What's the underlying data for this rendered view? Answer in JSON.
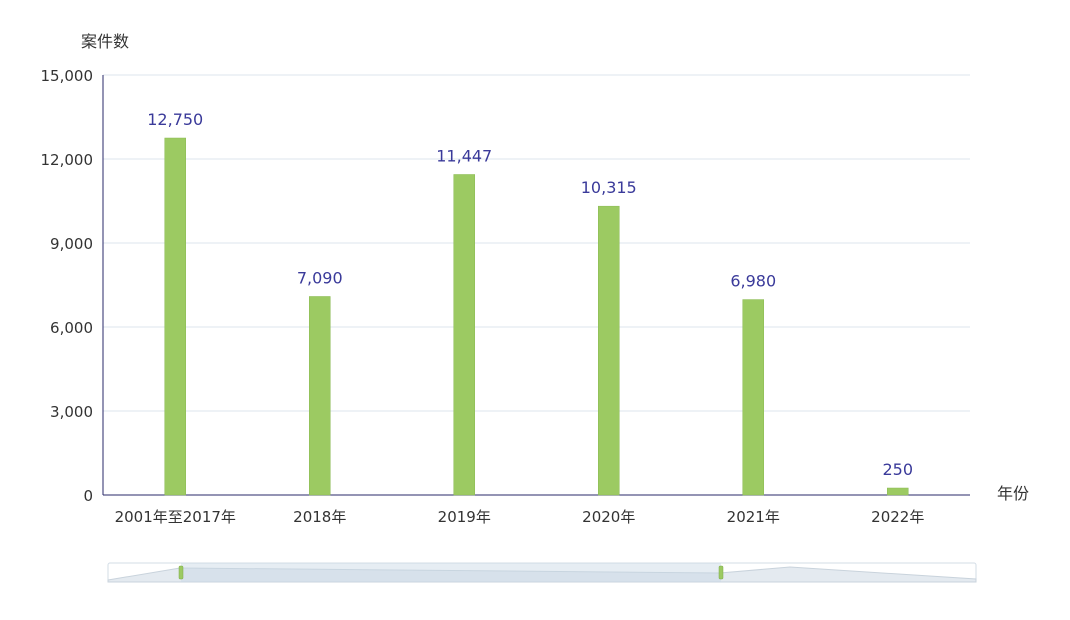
{
  "chart_data": {
    "type": "bar",
    "categories": [
      "2001年至2017年",
      "2018年",
      "2019年",
      "2020年",
      "2021年",
      "2022年"
    ],
    "values": [
      12750,
      7090,
      11447,
      10315,
      6980,
      250
    ],
    "data_labels": [
      "12,750",
      "7,090",
      "11,447",
      "10,315",
      "6,980",
      "250"
    ],
    "ylabel": "案件数",
    "xlabel": "年份",
    "ylim": [
      0,
      15000
    ],
    "yticks": [
      0,
      3000,
      6000,
      9000,
      12000,
      15000
    ],
    "ytick_labels": [
      "0",
      "3,000",
      "6,000",
      "9,000",
      "12,000",
      "15,000"
    ],
    "grid": true,
    "colors": {
      "bar": "#9cca62",
      "bar_edge": "#8aba52",
      "data_label": "#3a3a9a",
      "axis_text": "#333333",
      "grid": "#dde6ee",
      "axis": "#2a2a6a"
    },
    "data_zoom": {
      "visible": true
    }
  }
}
